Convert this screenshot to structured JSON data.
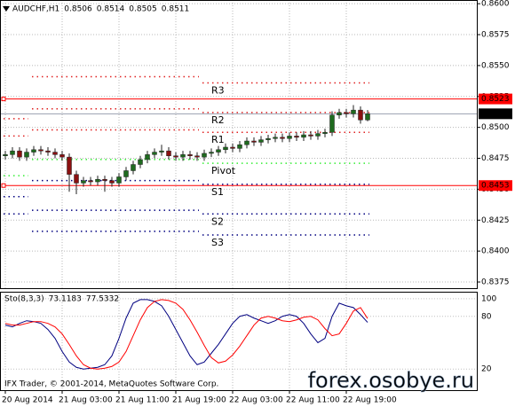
{
  "chart_data": {
    "type": "candlestick",
    "symbol": "AUDCHF,H1",
    "open": [
      0.8477,
      0.8478,
      0.8481,
      0.8476,
      0.848,
      0.8482,
      0.8481,
      0.848,
      0.8478,
      0.8476,
      0.8462,
      0.8455,
      0.8457,
      0.8456,
      0.8458,
      0.8457,
      0.8455,
      0.846,
      0.8465,
      0.847,
      0.8474,
      0.8478,
      0.848,
      0.8481,
      0.8477,
      0.8476,
      0.8478,
      0.8477,
      0.8476,
      0.8479,
      0.848,
      0.8482,
      0.8484,
      0.8483,
      0.8486,
      0.8489,
      0.8488,
      0.849,
      0.8491,
      0.8492,
      0.8491,
      0.8493,
      0.8492,
      0.8494,
      0.8493,
      0.8495,
      0.8496,
      0.851,
      0.8512,
      0.8511,
      0.8514,
      0.8506
    ],
    "high": [
      0.8481,
      0.8484,
      0.8484,
      0.8483,
      0.8485,
      0.8485,
      0.8484,
      0.8483,
      0.8481,
      0.8479,
      0.8465,
      0.846,
      0.846,
      0.8461,
      0.8461,
      0.846,
      0.8463,
      0.8468,
      0.8473,
      0.8477,
      0.8481,
      0.8483,
      0.8486,
      0.8484,
      0.848,
      0.8481,
      0.8481,
      0.848,
      0.8482,
      0.8483,
      0.8485,
      0.8487,
      0.8487,
      0.8489,
      0.8492,
      0.8492,
      0.8493,
      0.8494,
      0.8495,
      0.8495,
      0.8496,
      0.8496,
      0.8497,
      0.8497,
      0.8498,
      0.8499,
      0.8513,
      0.8515,
      0.8515,
      0.8518,
      0.8517,
      0.8514
    ],
    "low": [
      0.8474,
      0.8475,
      0.8473,
      0.8473,
      0.8477,
      0.8478,
      0.8477,
      0.8475,
      0.8473,
      0.8448,
      0.8446,
      0.8452,
      0.8453,
      0.8453,
      0.8448,
      0.8452,
      0.8452,
      0.8457,
      0.8462,
      0.8467,
      0.8471,
      0.8475,
      0.8477,
      0.8474,
      0.8473,
      0.8473,
      0.8474,
      0.8473,
      0.8473,
      0.8476,
      0.8477,
      0.8479,
      0.848,
      0.848,
      0.8483,
      0.8485,
      0.8485,
      0.8487,
      0.8488,
      0.8488,
      0.8488,
      0.8489,
      0.8489,
      0.849,
      0.849,
      0.8492,
      0.8493,
      0.8507,
      0.8508,
      0.8508,
      0.8503,
      0.8505
    ],
    "close": [
      0.8478,
      0.8481,
      0.8476,
      0.848,
      0.8482,
      0.8481,
      0.848,
      0.8478,
      0.8476,
      0.8462,
      0.8455,
      0.8457,
      0.8456,
      0.8458,
      0.8457,
      0.8455,
      0.846,
      0.8465,
      0.847,
      0.8474,
      0.8478,
      0.848,
      0.8481,
      0.8477,
      0.8476,
      0.8478,
      0.8477,
      0.8476,
      0.8479,
      0.848,
      0.8482,
      0.8484,
      0.8483,
      0.8486,
      0.8489,
      0.8488,
      0.849,
      0.8491,
      0.8492,
      0.8491,
      0.8493,
      0.8492,
      0.8494,
      0.8493,
      0.8495,
      0.8496,
      0.851,
      0.8512,
      0.8511,
      0.8514,
      0.8506,
      0.8511
    ],
    "bull_color": "#1e6b1e",
    "bear_color": "#8b1010",
    "ylim": [
      0.837,
      0.8603
    ],
    "yticks": [
      {
        "value": 0.86,
        "label": "0.8600"
      },
      0.8575,
      {
        "value": 0.855,
        "label": "0.8550"
      },
      0.8525,
      {
        "value": 0.85,
        "label": "0.8500"
      },
      0.8475,
      {
        "value": 0.845,
        "label": "0.8450"
      },
      0.8425,
      {
        "value": 0.84,
        "label": "0.8400"
      },
      0.8375
    ],
    "xticks": [
      {
        "value": 0,
        "label": "20 Aug 2014"
      },
      {
        "value": 8,
        "label": "21 Aug 03:00"
      },
      {
        "value": 16,
        "label": "21 Aug 11:00"
      },
      {
        "value": 24,
        "label": "21 Aug 19:00"
      },
      {
        "value": 32,
        "label": "22 Aug 03:00"
      },
      {
        "value": 40,
        "label": "22 Aug 11:00"
      },
      {
        "value": 48,
        "label": "22 Aug 19:00"
      }
    ],
    "grid": true,
    "pivots": {
      "names": [
        "R3",
        "R2",
        "R1",
        "Pivot",
        "S1",
        "S2",
        "S3"
      ],
      "colors": [
        "#e02020",
        "#e02020",
        "#e02020",
        "#33ee33",
        "#000080",
        "#000080",
        "#000080"
      ],
      "days": [
        {
          "from": 0,
          "to": 3,
          "values": [
            null,
            0.8507,
            0.8493,
            0.8461,
            0.8444,
            0.843,
            null
          ]
        },
        {
          "from": 4,
          "to": 27,
          "values": [
            0.8541,
            0.8515,
            0.8498,
            0.8474,
            0.8457,
            0.8433,
            0.8416
          ]
        },
        {
          "from": 28,
          "to": 51,
          "values": [
            0.8536,
            0.8512,
            0.8496,
            0.8471,
            0.8454,
            0.843,
            0.8413
          ]
        }
      ]
    },
    "levels": [
      {
        "value": 0.8523,
        "color": "#ff0000"
      },
      {
        "value": 0.8453,
        "color": "#ff0000"
      }
    ],
    "bid": {
      "value": 0.8511,
      "color": "#9aa0b0"
    },
    "indicator": {
      "name": "Sto(8,3,3)",
      "ylim": [
        -4,
        108
      ],
      "yticks": [
        20,
        80,
        100
      ],
      "series": [
        {
          "color": "#000080",
          "values": [
            70,
            68,
            72,
            75,
            74,
            72,
            65,
            55,
            40,
            28,
            22,
            20,
            21,
            22,
            25,
            35,
            55,
            78,
            95,
            99,
            99,
            97,
            92,
            80,
            65,
            50,
            35,
            25,
            28,
            38,
            48,
            60,
            72,
            80,
            82,
            78,
            75,
            72,
            75,
            80,
            82,
            80,
            72,
            60,
            50,
            55,
            80,
            95,
            92,
            90,
            82,
            73.1183
          ]
        },
        {
          "color": "#ff0000",
          "values": [
            72,
            70,
            70,
            72,
            74,
            74,
            72,
            68,
            60,
            48,
            35,
            25,
            21,
            20,
            21,
            23,
            28,
            40,
            58,
            76,
            90,
            97,
            99,
            98,
            95,
            88,
            76,
            62,
            47,
            33,
            27,
            29,
            36,
            46,
            58,
            70,
            78,
            80,
            78,
            75,
            74,
            76,
            79,
            80,
            76,
            66,
            58,
            60,
            72,
            86,
            90,
            77.5332
          ]
        }
      ]
    }
  },
  "footer": "IFX Trader, © 2001-2014, MetaQuotes Software Corp.",
  "watermark": "forex.osobye.ru"
}
